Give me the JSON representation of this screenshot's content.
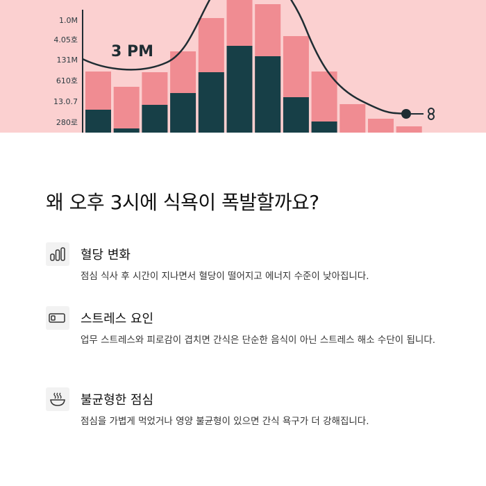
{
  "chart_data": {
    "type": "bar",
    "y_tick_labels": [
      "1.0M",
      "4.05호",
      "131M",
      "610호",
      "13.0.7",
      "280로"
    ],
    "callout": "3 PM",
    "series": [
      {
        "color": "#f08c92",
        "values": [
          88,
          66,
          87,
          117,
          165,
          200,
          185,
          139,
          88,
          41,
          20,
          9
        ]
      },
      {
        "color": "#173f47",
        "values": [
          33,
          6,
          40,
          57,
          87,
          125,
          110,
          51,
          16,
          0,
          0,
          0
        ]
      }
    ],
    "curve": [
      [
        0,
        100
      ],
      [
        1,
        112
      ],
      [
        2,
        110
      ],
      [
        3,
        80
      ],
      [
        4,
        25
      ],
      [
        5,
        0
      ],
      [
        6,
        0
      ],
      [
        7,
        0
      ],
      [
        8,
        110
      ],
      [
        9,
        148
      ],
      [
        10,
        162
      ],
      [
        11,
        163
      ]
    ],
    "line_color": "#1f2d33",
    "grid": false
  },
  "heading": "왜 오후 3시에 식욕이 폭발할까요?",
  "items": [
    {
      "icon": "bar-chart-icon",
      "title": "혈당 변화",
      "desc": "점심 식사 후 시간이 지나면서 혈당이 떨어지고 에너지 수준이 낮아집니다."
    },
    {
      "icon": "battery-low-icon",
      "title": "스트레스 요인",
      "desc": "업무 스트레스와 피로감이 겹치면 간식은 단순한 음식이 아닌 스트레스 해소 수단이 됩니다."
    },
    {
      "icon": "bowl-icon",
      "title": "불균형한 점심",
      "desc": "점심을 가볍게 먹었거나 영양 불균형이 있으면 간식 욕구가 더 강해집니다."
    }
  ]
}
